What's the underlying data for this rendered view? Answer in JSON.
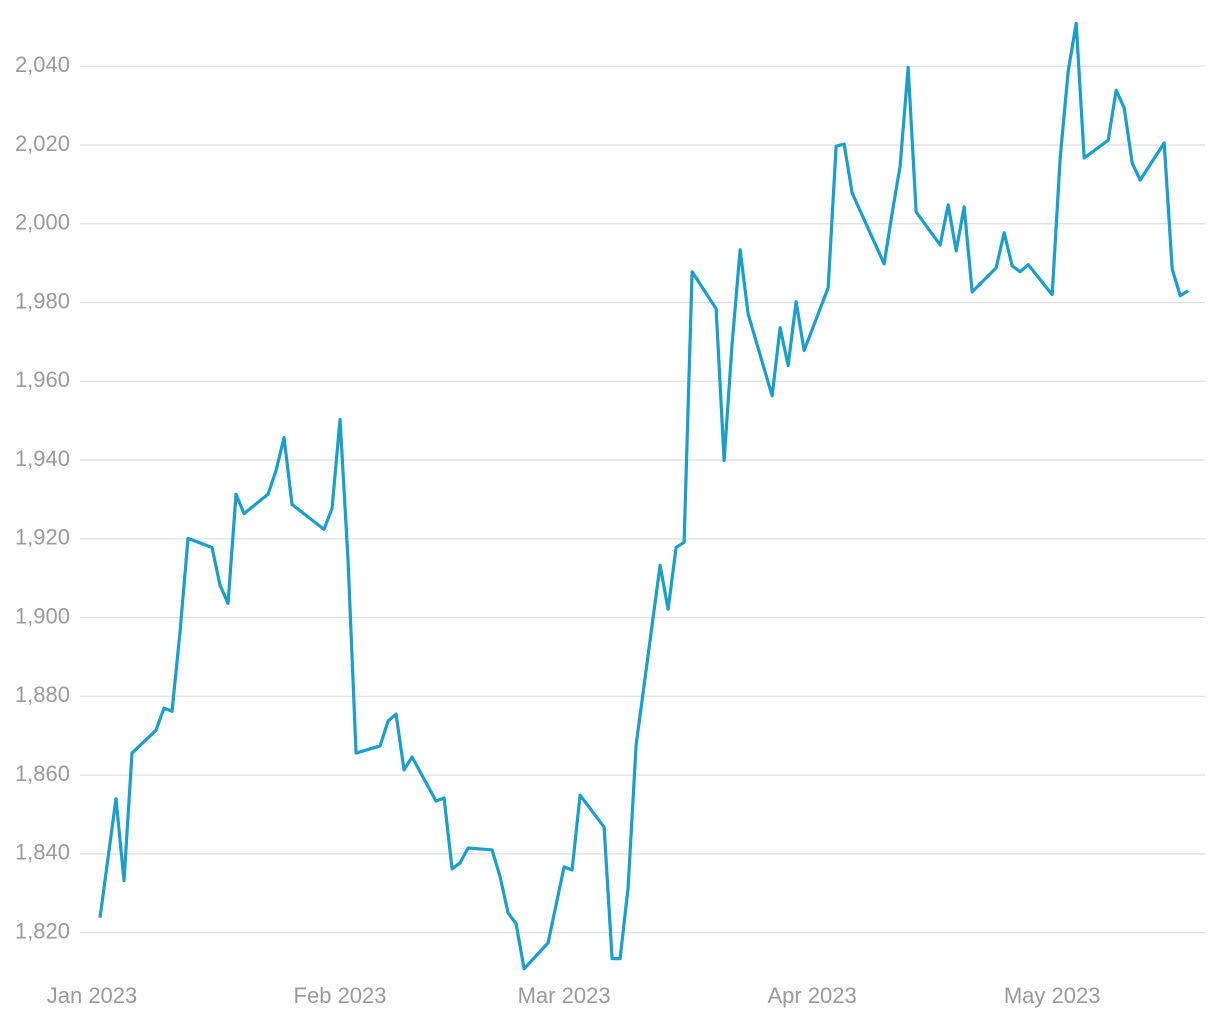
{
  "chart_data": {
    "type": "line",
    "x": [
      1,
      3,
      4,
      5,
      8,
      9,
      10,
      11,
      12,
      15,
      16,
      17,
      18,
      19,
      22,
      23,
      24,
      25,
      29,
      30,
      31,
      32,
      33,
      36,
      37,
      38,
      39,
      40,
      43,
      44,
      45,
      46,
      47,
      50,
      51,
      52,
      53,
      54,
      57,
      59,
      60,
      61,
      64,
      65,
      66,
      67,
      68,
      71,
      72,
      73,
      74,
      75,
      78,
      79,
      80,
      81,
      82,
      85,
      86,
      87,
      88,
      89,
      92,
      93,
      94,
      95,
      99,
      100,
      101,
      102,
      103,
      106,
      107,
      108,
      109,
      110,
      113,
      114,
      115,
      116,
      117,
      120,
      121,
      122,
      123,
      124,
      127,
      128,
      129,
      130,
      131,
      134,
      135,
      136,
      137
    ],
    "series": [
      {
        "color": "#1a9fcb",
        "values": [
          1823.8,
          1854,
          1833.2,
          1865.6,
          1871.4,
          1877,
          1876.2,
          1896.3,
          1920.1,
          1917.8,
          1908.2,
          1903.6,
          1931.3,
          1926.4,
          1931.3,
          1937.3,
          1945.7,
          1928.7,
          1922.4,
          1927.7,
          1950.3,
          1914.5,
          1865.6,
          1867.4,
          1873.7,
          1875.5,
          1861.3,
          1864.6,
          1853.4,
          1854.2,
          1836.2,
          1837.7,
          1841.5,
          1841,
          1834.2,
          1825,
          1822.3,
          1810.8,
          1817.4,
          1836.7,
          1835.9,
          1854.9,
          1846.8,
          1813.4,
          1813.4,
          1831.4,
          1867.6,
          1913.3,
          1902.1,
          1917.8,
          1919.1,
          1987.8,
          1978.4,
          1939.9,
          1969.5,
          1993.4,
          1977.1,
          1956.3,
          1973.6,
          1964,
          1980.2,
          1967.8,
          1983.7,
          2019.7,
          2020.2,
          2007.8,
          1989.8,
          2002.7,
          2014.7,
          2039.7,
          2003,
          1994.6,
          2004.8,
          1993.1,
          2004.3,
          1982.7,
          1988.8,
          1997.7,
          1989.3,
          1987.8,
          1989.6,
          1982,
          2016.7,
          2038.7,
          2050.9,
          2016.7,
          2021.2,
          2033.9,
          2029.4,
          2015.4,
          2011.1,
          2020.5,
          1988.5,
          1981.7,
          1983
        ]
      }
    ],
    "xlim": [
      -1.5,
      139.1
    ],
    "xticks": [
      {
        "value": 0,
        "label": "Jan 2023"
      },
      {
        "value": 31,
        "label": "Feb 2023"
      },
      {
        "value": 59,
        "label": "Mar 2023"
      },
      {
        "value": 90,
        "label": "Apr 2023"
      },
      {
        "value": 120,
        "label": "May 2023"
      }
    ],
    "ylim": [
      1810,
      2053
    ],
    "yticks": [
      {
        "value": 1820,
        "label": "1,820"
      },
      {
        "value": 1840,
        "label": "1,840"
      },
      {
        "value": 1860,
        "label": "1,860"
      },
      {
        "value": 1880,
        "label": "1,880"
      },
      {
        "value": 1900,
        "label": "1,900"
      },
      {
        "value": 1920,
        "label": "1,920"
      },
      {
        "value": 1940,
        "label": "1,940"
      },
      {
        "value": 1960,
        "label": "1,960"
      },
      {
        "value": 1980,
        "label": "1,980"
      },
      {
        "value": 2000,
        "label": "2,000"
      },
      {
        "value": 2020,
        "label": "2,020"
      },
      {
        "value": 2040,
        "label": "2,040"
      }
    ],
    "grid": true
  }
}
